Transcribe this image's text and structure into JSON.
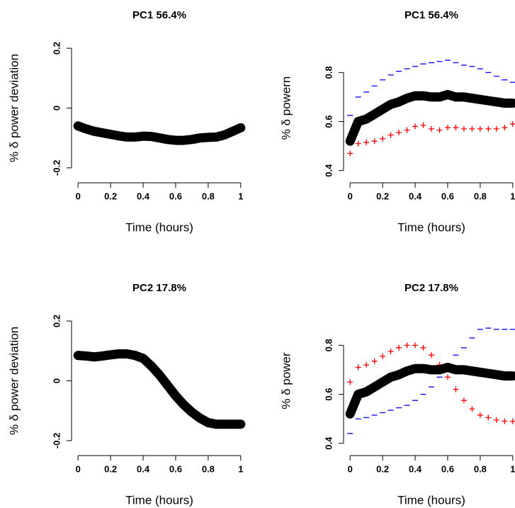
{
  "chart_data": [
    {
      "type": "scatter",
      "title": "PC1 56.4%",
      "x_label": "Time (hours)",
      "y_label": "% δ power deviation",
      "xlim": [
        -0.04,
        1.04
      ],
      "ylim": [
        -0.25,
        0.25
      ],
      "xticks": [
        0,
        0.2,
        0.4,
        0.6,
        0.8,
        1
      ],
      "yticks": [
        -0.2,
        0,
        0.2
      ],
      "x": [
        0,
        0.05,
        0.1,
        0.15,
        0.2,
        0.25,
        0.3,
        0.35,
        0.4,
        0.45,
        0.5,
        0.55,
        0.6,
        0.65,
        0.7,
        0.75,
        0.8,
        0.85,
        0.9,
        0.95,
        1
      ],
      "series": [
        {
          "color": "#000000",
          "marker": "dot",
          "values": [
            -0.06,
            -0.07,
            -0.078,
            -0.083,
            -0.088,
            -0.093,
            -0.097,
            -0.097,
            -0.094,
            -0.095,
            -0.1,
            -0.105,
            -0.108,
            -0.108,
            -0.105,
            -0.1,
            -0.098,
            -0.097,
            -0.09,
            -0.078,
            -0.066
          ]
        }
      ]
    },
    {
      "type": "scatter",
      "title": "PC1 56.4%",
      "x_label": "Time (hours)",
      "y_label": "% δ powern",
      "xlim": [
        -0.04,
        1.04
      ],
      "ylim": [
        0.35,
        0.96
      ],
      "xticks": [
        0,
        0.2,
        0.4,
        0.6,
        0.8,
        1
      ],
      "yticks": [
        0.4,
        0.6,
        0.8
      ],
      "x": [
        0,
        0.05,
        0.1,
        0.15,
        0.2,
        0.25,
        0.3,
        0.35,
        0.4,
        0.45,
        0.5,
        0.55,
        0.6,
        0.65,
        0.7,
        0.75,
        0.8,
        0.85,
        0.9,
        0.95,
        1
      ],
      "series": [
        {
          "color": "#0000ff",
          "marker": "dash",
          "values": [
            0.625,
            0.7,
            0.72,
            0.745,
            0.77,
            0.79,
            0.805,
            0.815,
            0.825,
            0.835,
            0.84,
            0.845,
            0.85,
            0.84,
            0.83,
            0.825,
            0.815,
            0.8,
            0.785,
            0.77,
            0.76
          ]
        },
        {
          "color": "#ff0000",
          "marker": "plus",
          "values": [
            0.47,
            0.51,
            0.515,
            0.52,
            0.53,
            0.545,
            0.555,
            0.565,
            0.58,
            0.585,
            0.57,
            0.565,
            0.575,
            0.575,
            0.57,
            0.57,
            0.57,
            0.57,
            0.57,
            0.575,
            0.59
          ]
        },
        {
          "color": "#000000",
          "marker": "dot",
          "values": [
            0.52,
            0.6,
            0.61,
            0.63,
            0.65,
            0.67,
            0.68,
            0.695,
            0.705,
            0.705,
            0.7,
            0.7,
            0.71,
            0.7,
            0.7,
            0.695,
            0.69,
            0.685,
            0.68,
            0.675,
            0.675
          ]
        }
      ]
    },
    {
      "type": "scatter",
      "title": "PC2 17.8%",
      "x_label": "Time (hours)",
      "y_label": "% δ power deviation",
      "xlim": [
        -0.04,
        1.04
      ],
      "ylim": [
        -0.25,
        0.25
      ],
      "xticks": [
        0,
        0.2,
        0.4,
        0.6,
        0.8,
        1
      ],
      "yticks": [
        -0.2,
        0,
        0.2
      ],
      "x": [
        0,
        0.05,
        0.1,
        0.15,
        0.2,
        0.25,
        0.3,
        0.35,
        0.4,
        0.45,
        0.5,
        0.55,
        0.6,
        0.65,
        0.7,
        0.75,
        0.8,
        0.85,
        0.9,
        0.95,
        1
      ],
      "series": [
        {
          "color": "#000000",
          "marker": "dot",
          "values": [
            0.085,
            0.083,
            0.08,
            0.083,
            0.087,
            0.09,
            0.09,
            0.085,
            0.075,
            0.05,
            0.02,
            -0.015,
            -0.05,
            -0.08,
            -0.105,
            -0.125,
            -0.14,
            -0.145,
            -0.145,
            -0.145,
            -0.145
          ]
        }
      ]
    },
    {
      "type": "scatter",
      "title": "PC2 17.8%",
      "x_label": "Time (hours)",
      "y_label": "% δ power",
      "xlim": [
        -0.04,
        1.04
      ],
      "ylim": [
        0.35,
        0.96
      ],
      "xticks": [
        0,
        0.2,
        0.4,
        0.6,
        0.8,
        1
      ],
      "yticks": [
        0.4,
        0.6,
        0.8
      ],
      "x": [
        0,
        0.05,
        0.1,
        0.15,
        0.2,
        0.25,
        0.3,
        0.35,
        0.4,
        0.45,
        0.5,
        0.55,
        0.6,
        0.65,
        0.7,
        0.75,
        0.8,
        0.85,
        0.9,
        0.95,
        1
      ],
      "series": [
        {
          "color": "#0000ff",
          "marker": "dash",
          "values": [
            0.44,
            0.5,
            0.505,
            0.515,
            0.525,
            0.535,
            0.545,
            0.555,
            0.575,
            0.6,
            0.63,
            0.67,
            0.72,
            0.76,
            0.79,
            0.83,
            0.865,
            0.87,
            0.865,
            0.865,
            0.865
          ]
        },
        {
          "color": "#ff0000",
          "marker": "plus",
          "values": [
            0.65,
            0.71,
            0.72,
            0.735,
            0.755,
            0.775,
            0.79,
            0.8,
            0.8,
            0.79,
            0.76,
            0.72,
            0.67,
            0.62,
            0.575,
            0.54,
            0.515,
            0.505,
            0.495,
            0.49,
            0.49
          ]
        },
        {
          "color": "#000000",
          "marker": "dot",
          "values": [
            0.52,
            0.6,
            0.61,
            0.63,
            0.65,
            0.67,
            0.68,
            0.695,
            0.705,
            0.705,
            0.7,
            0.7,
            0.71,
            0.7,
            0.7,
            0.695,
            0.69,
            0.685,
            0.68,
            0.675,
            0.675
          ]
        }
      ]
    }
  ]
}
